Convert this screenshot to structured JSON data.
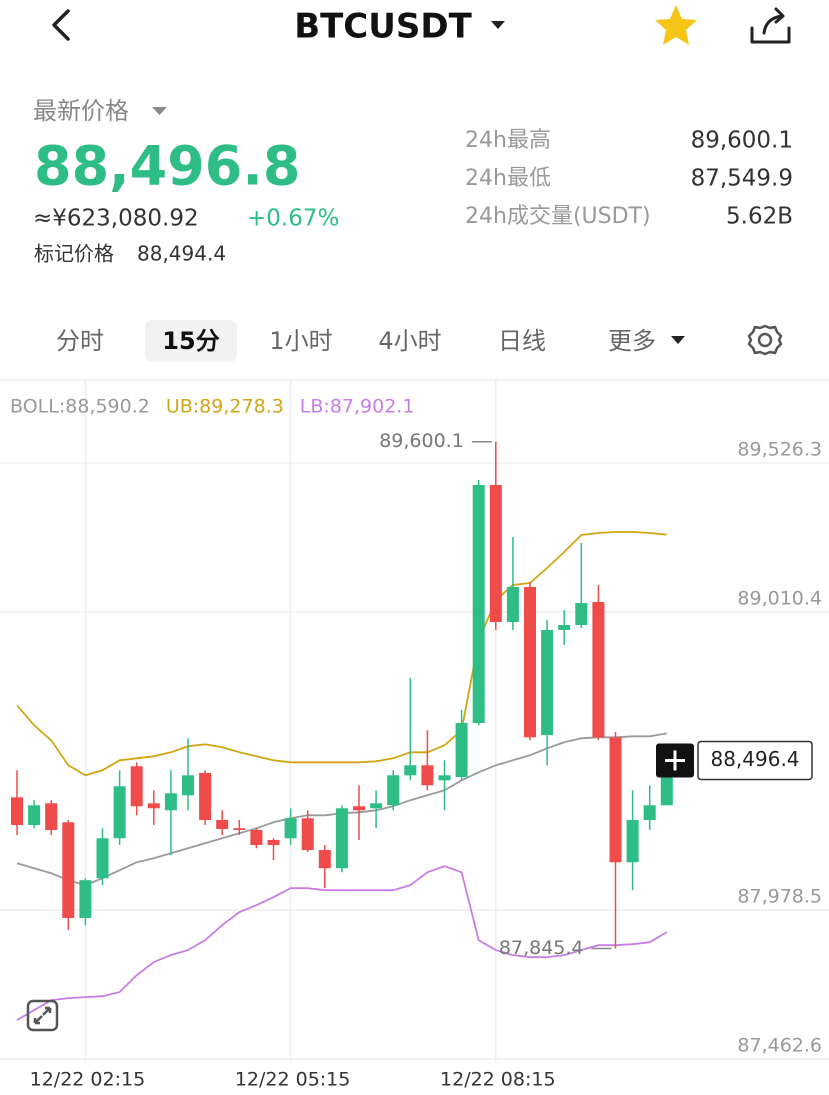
{
  "header": {
    "title": "BTCUSDT"
  },
  "ticker": {
    "price_label": "最新价格",
    "price": "88,496.8",
    "cny": "≈¥623,080.92",
    "change": "+0.67%",
    "mark_label": "标记价格",
    "mark_price": "88,494.4"
  },
  "stats": [
    {
      "label": "24h最高",
      "value": "89,600.1"
    },
    {
      "label": "24h最低",
      "value": "87,549.9"
    },
    {
      "label": "24h成交量(USDT)",
      "value": "5.62B"
    }
  ],
  "tabs": [
    "分时",
    "15分",
    "1小时",
    "4小时",
    "日线",
    "更多"
  ],
  "active_tab": 1,
  "chart_data": {
    "type": "candlestick",
    "categories": [
      null,
      null,
      null,
      null,
      "12/22 02:15",
      null,
      null,
      null,
      null,
      null,
      null,
      null,
      null,
      null,
      null,
      null,
      "12/22 05:15",
      null,
      null,
      null,
      null,
      null,
      null,
      null,
      null,
      null,
      null,
      null,
      "12/22 08:15",
      null,
      null,
      null,
      null,
      null,
      null,
      null,
      null,
      null,
      null
    ],
    "candles": {
      "open": [
        88368.8,
        88272.9,
        88348.1,
        88282.3,
        87950.9,
        88088.6,
        88227.0,
        88476.2,
        88348.1,
        88323.9,
        88375.8,
        88453.0,
        88290.2,
        88261.6,
        88255.6,
        88221.2,
        88227.0,
        88296.2,
        88186.4,
        88123.2,
        88337.7,
        88330.8,
        88341.2,
        88445.0,
        88479.7,
        88427.7,
        88439.1,
        88626.1,
        89450.1,
        88975.8,
        89097.0,
        88584.5,
        88948.1,
        88965.4,
        89045.0,
        88576.6,
        88143.9,
        88290.2,
        88341.2
      ],
      "high": [
        88462.4,
        88358.6,
        88358.6,
        88290.2,
        88088.6,
        88261.6,
        88462.4,
        88490.1,
        88393.1,
        88462.4,
        88573.1,
        88462.4,
        88323.9,
        88290.2,
        88261.6,
        88227.0,
        88330.8,
        88323.9,
        88203.7,
        88341.2,
        88410.4,
        88393.1,
        88462.4,
        88781.9,
        88600.8,
        88497.0,
        88671.1,
        89467.4,
        89600.1,
        89270.1,
        89114.3,
        88982.7,
        89017.3,
        89249.3,
        89103.9,
        88594.9,
        88393.1,
        88410.4,
        88496.4
      ],
      "low": [
        88238.4,
        88261.6,
        88238.4,
        87909.4,
        87925.9,
        88064.4,
        88203.7,
        88306.6,
        88272.9,
        88169.0,
        88323.9,
        88272.9,
        88238.4,
        88238.4,
        88192.4,
        88150.8,
        88203.7,
        88179.4,
        88054.0,
        88109.3,
        88221.2,
        88261.6,
        88323.9,
        88427.7,
        88393.1,
        88323.9,
        88427.7,
        88618.2,
        88948.1,
        88948.1,
        88566.2,
        88479.7,
        88896.2,
        88955.0,
        88566.2,
        87845.4,
        88047.1,
        88255.6,
        88341.2
      ],
      "close": [
        88272.9,
        88341.2,
        88255.6,
        87950.9,
        88081.7,
        88227.0,
        88406.9,
        88337.7,
        88330.8,
        88382.7,
        88445.0,
        88290.2,
        88259.1,
        88255.6,
        88203.7,
        88203.7,
        88296.2,
        88186.4,
        88123.2,
        88330.8,
        88323.9,
        88348.1,
        88445.0,
        88479.7,
        88410.4,
        88445.0,
        88626.1,
        89450.1,
        88975.8,
        89097.0,
        88576.6,
        88948.1,
        88965.4,
        89041.6,
        88576.6,
        88143.9,
        88290.2,
        88341.2,
        88496.4
      ]
    },
    "up_color": "#2ebd85",
    "down_color": "#ef4b4b",
    "lines": [
      {
        "name": "BOLL:88,590.2",
        "color": "#9a9a9a",
        "values": [
          88140.5,
          88123.2,
          88105.9,
          88081.7,
          88064.4,
          88088.6,
          88116.3,
          88143.9,
          88157.8,
          88175.1,
          88192.4,
          88209.7,
          88227.0,
          88244.3,
          88261.6,
          88282.3,
          88296.2,
          88306.6,
          88306.6,
          88313.5,
          88317.0,
          88323.9,
          88337.7,
          88358.6,
          88375.8,
          88393.1,
          88427.7,
          88455.5,
          88479.7,
          88497.0,
          88514.3,
          88538.5,
          88559.3,
          88573.1,
          88576.6,
          88576.6,
          88580.1,
          88580.1,
          88590.2
        ]
      },
      {
        "name": "UB:89,278.3",
        "color": "#d1a514",
        "values": [
          88687.4,
          88618.2,
          88566.2,
          88479.7,
          88445.0,
          88462.4,
          88497.0,
          88503.9,
          88510.9,
          88524.7,
          88545.5,
          88552.4,
          88542.0,
          88524.7,
          88510.9,
          88497.0,
          88490.1,
          88490.1,
          88490.1,
          88490.1,
          88490.1,
          88493.5,
          88503.9,
          88524.7,
          88524.7,
          88548.9,
          88600.8,
          88912.5,
          89051.0,
          89103.9,
          89110.8,
          89162.7,
          89218.1,
          89277.0,
          89283.9,
          89287.4,
          89287.4,
          89283.9,
          89278.3
        ]
      },
      {
        "name": "LB:87,902.1",
        "color": "#c77de6",
        "values": [
          87597.3,
          87631.8,
          87666.4,
          87673.4,
          87676.9,
          87680.3,
          87694.2,
          87753.0,
          87798.1,
          87822.3,
          87839.6,
          87874.1,
          87925.9,
          87970.9,
          87995.1,
          88022.9,
          88054.0,
          88054.0,
          88047.1,
          88047.1,
          88047.1,
          88047.1,
          88047.1,
          88064.4,
          88109.3,
          88130.1,
          88109.3,
          87874.1,
          87839.6,
          87822.3,
          87815.3,
          87815.3,
          87822.3,
          87839.6,
          87856.8,
          87856.8,
          87860.3,
          87867.2,
          87902.1
        ]
      }
    ],
    "annotations": [
      {
        "value": 89600.1,
        "label": "89,600.1"
      },
      {
        "value": 87845.4,
        "label": "87,845.4"
      }
    ],
    "last_price": {
      "value": 88496.4,
      "label": "88,496.4"
    },
    "ylim": [
      87452.3,
      89813.7
    ],
    "yticks": [
      {
        "value": 89526.3,
        "label": "89,526.3"
      },
      {
        "value": 89010.4,
        "label": "89,010.4"
      },
      {
        "value": 87978.5,
        "label": "87,978.5"
      },
      {
        "value": 87462.6,
        "label": "87,462.6"
      }
    ],
    "grid": true
  }
}
